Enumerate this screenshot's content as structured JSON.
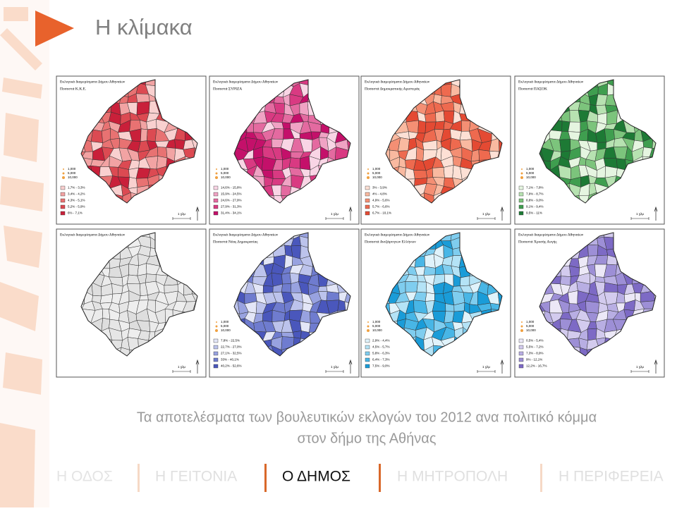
{
  "header": {
    "title": "Η κλίμακα"
  },
  "maps": [
    {
      "title": "Εκλογικά διαμερίσματα Δήμου Αθηναίων",
      "subtitle": "Ποσοστά Κ.Κ.Ε.",
      "sizes": [
        "1,000",
        "5,000",
        "10,000"
      ],
      "legend": [
        "1,7% - 3,3%",
        "3,4% - 4,2%",
        "4,3% - 5,1%",
        "5,2% - 5,9%",
        "6% - 7,1%"
      ],
      "scale": "1 χλμ"
    },
    {
      "title": "Εκλογικά διαμερίσματα Δήμου Αθηναίων",
      "subtitle": "Ποσοστά ΣΥΡΙΖΑ",
      "sizes": [
        "1,000",
        "5,000",
        "10,000"
      ],
      "legend": [
        "14,6% - 15,8%",
        "15,9% - 24,5%",
        "24,6% - 27,9%",
        "27,9% - 31,3%",
        "31,4% - 34,1%"
      ],
      "scale": "1 χλμ"
    },
    {
      "title": "Εκλογικά διαμερίσματα Δήμου Αθηναίων",
      "subtitle": "Ποσοστά Δημοκρατικής Αριστεράς",
      "sizes": [
        "1,000",
        "5,000",
        "10,000"
      ],
      "legend": [
        "3% - 3,9%",
        "4% - 4,8%",
        "4,9% - 5,6%",
        "5,7% - 6,6%",
        "6,7% - 10,1%"
      ],
      "scale": "1 χλμ"
    },
    {
      "title": "Εκλογικά διαμερίσματα Δήμου Αθηναίων",
      "subtitle": "Ποσοστά ΠΑΣΟΚ",
      "sizes": [
        "1,000",
        "5,000",
        "10,000"
      ],
      "legend": [
        "7,1% - 7,8%",
        "7,9% - 8,7%",
        "8,8% - 9,0%",
        "9,1% - 9,4%",
        "9,5% - 11%"
      ],
      "scale": "1 χλμ"
    },
    {
      "title": "Εκλογικά διαμερίσματα Δήμου Αθηναίων",
      "scale": "1 χλμ"
    },
    {
      "title": "Εκλογικά διαμερίσματα Δήμου Αθηναίων",
      "subtitle": "Ποσοστά Νέας Δημοκρατίας",
      "sizes": [
        "1,000",
        "5,000",
        "10,000"
      ],
      "legend": [
        "7,8% - 22,5%",
        "22,7% - 27,0%",
        "27,1% - 32,5%",
        "33% - 40,1%",
        "40,2% - 52,6%"
      ],
      "scale": "1 χλμ"
    },
    {
      "title": "Εκλογικά διαμερίσματα Δήμου Αθηναίων",
      "subtitle": "Ποσοστά Ανεξάρτητων Ελλήνων",
      "sizes": [
        "1,000",
        "5,000",
        "10,000"
      ],
      "legend": [
        "2,9% - 4,4%",
        "4,5% - 5,7%",
        "5,8% - 6,3%",
        "6,4% - 7,3%",
        "7,5% - 9,0%"
      ],
      "scale": "1 χλμ"
    },
    {
      "title": "Εκλογικά διαμερίσματα Δήμου Αθηναίων",
      "subtitle": "Ποσοστά Χρυσής Αυγής",
      "sizes": [
        "1,000",
        "5,000",
        "10,000"
      ],
      "legend": [
        "0,5% - 5,4%",
        "5,5% - 7,2%",
        "7,3% - 8,9%",
        "9% - 12,1%",
        "12,2% - 16,7%"
      ],
      "scale": "1 χλμ"
    }
  ],
  "caption": [
    "Τα αποτελέσματα των βουλευτικών εκλογών του 2012 ανα πολιτικό κόμμα",
    "στον δήμο της Αθήνας"
  ],
  "nav": [
    "Η ΟΔΟΣ",
    "Η ΓΕΙΤΟΝΙΑ",
    "Ο ΔΗΜΟΣ",
    "Η ΜΗΤΡΟΠΟΛΗ",
    "Η ΠΕΡΙΦΕΡΕΙΑ"
  ]
}
